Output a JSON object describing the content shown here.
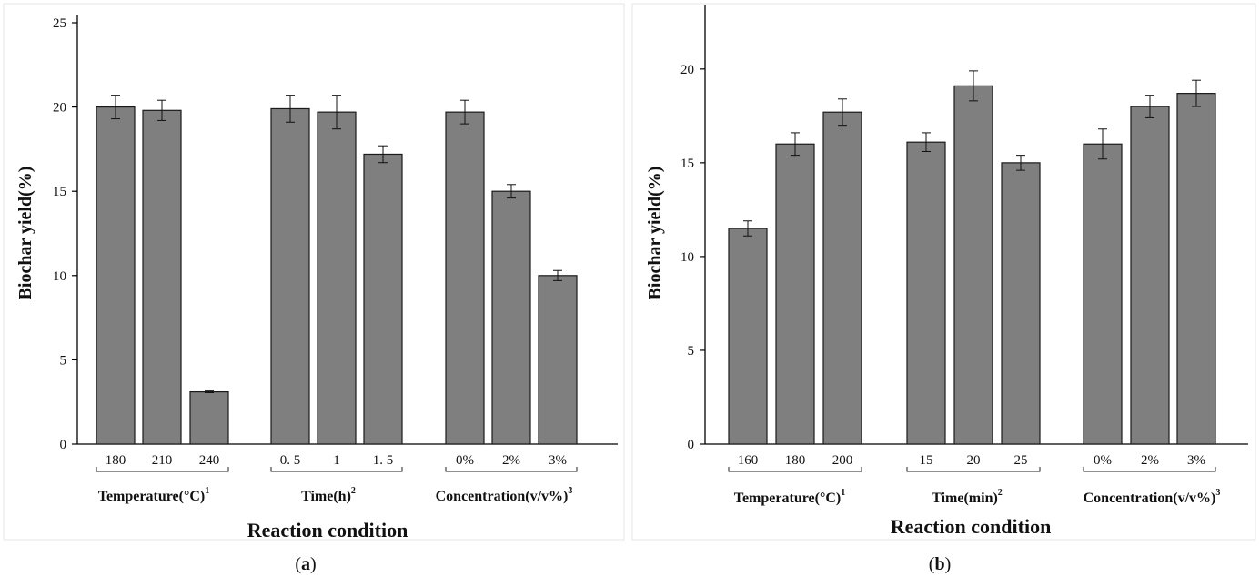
{
  "chart_data": [
    {
      "type": "bar",
      "panel_label": "(a)",
      "panel_letter": "a",
      "ylabel": "Biochar yield(%)",
      "xlabel": "Reaction condition",
      "ylim": [
        0,
        25
      ],
      "yticks": [
        "0",
        "5",
        "10",
        "15",
        "20",
        "25"
      ],
      "bar_color": "#7f7f7f",
      "groups": [
        {
          "label": "Temperature(°C)",
          "sup": "1",
          "categories": [
            "180",
            "210",
            "240"
          ],
          "values": [
            20.0,
            19.8,
            3.1
          ],
          "errors": [
            0.7,
            0.6,
            0.05
          ]
        },
        {
          "label": "Time(h)",
          "sup": "2",
          "categories": [
            "0. 5",
            "1",
            "1. 5"
          ],
          "values": [
            19.9,
            19.7,
            17.2
          ],
          "errors": [
            0.8,
            1.0,
            0.5
          ]
        },
        {
          "label": "Concentration(v/v%)",
          "sup": "3",
          "categories": [
            "0%",
            "2%",
            "3%"
          ],
          "values": [
            19.7,
            15.0,
            10.0
          ],
          "errors": [
            0.7,
            0.4,
            0.3
          ]
        }
      ]
    },
    {
      "type": "bar",
      "panel_label": "(b)",
      "panel_letter": "b",
      "ylabel": "Biochar yield(%)",
      "xlabel": "Reaction condition",
      "ylim": [
        0,
        23
      ],
      "yticks": [
        "0",
        "5",
        "10",
        "15",
        "20"
      ],
      "bar_color": "#7f7f7f",
      "groups": [
        {
          "label": "Temperature(°C)",
          "sup": "1",
          "categories": [
            "160",
            "180",
            "200"
          ],
          "values": [
            11.5,
            16.0,
            17.7
          ],
          "errors": [
            0.4,
            0.6,
            0.7
          ]
        },
        {
          "label": "Time(min)",
          "sup": "2",
          "categories": [
            "15",
            "20",
            "25"
          ],
          "values": [
            16.1,
            19.1,
            15.0
          ],
          "errors": [
            0.5,
            0.8,
            0.4
          ]
        },
        {
          "label": "Concentration(v/v%)",
          "sup": "3",
          "categories": [
            "0%",
            "2%",
            "3%"
          ],
          "values": [
            16.0,
            18.0,
            18.7
          ],
          "errors": [
            0.8,
            0.6,
            0.7
          ]
        }
      ]
    }
  ]
}
